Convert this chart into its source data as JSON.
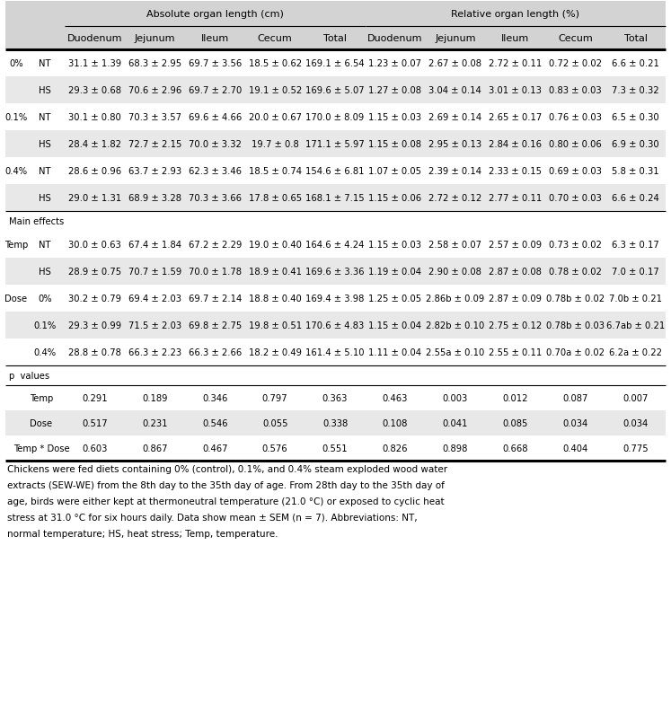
{
  "title_row1": "Absolute organ length (cm)",
  "title_row2": "Relative organ length (%)",
  "col_headers": [
    "Duodenum",
    "Jejunum",
    "Ileum",
    "Cecum",
    "Total",
    "Duodenum",
    "Jejunum",
    "Ileum",
    "Cecum",
    "Total"
  ],
  "rows": [
    {
      "label1": "0%",
      "label2": "NT",
      "cols": [
        "31.1 ± 1.39",
        "68.3 ± 2.95",
        "69.7 ± 3.56",
        "18.5 ± 0.62",
        "169.1 ± 6.54",
        "1.23 ± 0.07",
        "2.67 ± 0.08",
        "2.72 ± 0.11",
        "0.72 ± 0.02",
        "6.6 ± 0.21"
      ],
      "shaded": false
    },
    {
      "label1": "",
      "label2": "HS",
      "cols": [
        "29.3 ± 0.68",
        "70.6 ± 2.96",
        "69.7 ± 2.70",
        "19.1 ± 0.52",
        "169.6 ± 5.07",
        "1.27 ± 0.08",
        "3.04 ± 0.14",
        "3.01 ± 0.13",
        "0.83 ± 0.03",
        "7.3 ± 0.32"
      ],
      "shaded": true
    },
    {
      "label1": "0.1%",
      "label2": "NT",
      "cols": [
        "30.1 ± 0.80",
        "70.3 ± 3.57",
        "69.6 ± 4.66",
        "20.0 ± 0.67",
        "170.0 ± 8.09",
        "1.15 ± 0.03",
        "2.69 ± 0.14",
        "2.65 ± 0.17",
        "0.76 ± 0.03",
        "6.5 ± 0.30"
      ],
      "shaded": false
    },
    {
      "label1": "",
      "label2": "HS",
      "cols": [
        "28.4 ± 1.82",
        "72.7 ± 2.15",
        "70.0 ± 3.32",
        "19.7 ± 0.8",
        "171.1 ± 5.97",
        "1.15 ± 0.08",
        "2.95 ± 0.13",
        "2.84 ± 0.16",
        "0.80 ± 0.06",
        "6.9 ± 0.30"
      ],
      "shaded": true
    },
    {
      "label1": "0.4%",
      "label2": "NT",
      "cols": [
        "28.6 ± 0.96",
        "63.7 ± 2.93",
        "62.3 ± 3.46",
        "18.5 ± 0.74",
        "154.6 ± 6.81",
        "1.07 ± 0.05",
        "2.39 ± 0.14",
        "2.33 ± 0.15",
        "0.69 ± 0.03",
        "5.8 ± 0.31"
      ],
      "shaded": false
    },
    {
      "label1": "",
      "label2": "HS",
      "cols": [
        "29.0 ± 1.31",
        "68.9 ± 3.28",
        "70.3 ± 3.66",
        "17.8 ± 0.65",
        "168.1 ± 7.15",
        "1.15 ± 0.06",
        "2.72 ± 0.12",
        "2.77 ± 0.11",
        "0.70 ± 0.03",
        "6.6 ± 0.24"
      ],
      "shaded": true
    }
  ],
  "main_effects_label": "Main effects",
  "main_effects_rows": [
    {
      "label1": "Temp",
      "label2": "NT",
      "cols": [
        "30.0 ± 0.63",
        "67.4 ± 1.84",
        "67.2 ± 2.29",
        "19.0 ± 0.40",
        "164.6 ± 4.24",
        "1.15 ± 0.03",
        "2.58 ± 0.07",
        "2.57 ± 0.09",
        "0.73 ± 0.02",
        "6.3 ± 0.17"
      ],
      "shaded": false
    },
    {
      "label1": "",
      "label2": "HS",
      "cols": [
        "28.9 ± 0.75",
        "70.7 ± 1.59",
        "70.0 ± 1.78",
        "18.9 ± 0.41",
        "169.6 ± 3.36",
        "1.19 ± 0.04",
        "2.90 ± 0.08",
        "2.87 ± 0.08",
        "0.78 ± 0.02",
        "7.0 ± 0.17"
      ],
      "shaded": true
    },
    {
      "label1": "Dose",
      "label2": "0%",
      "cols": [
        "30.2 ± 0.79",
        "69.4 ± 2.03",
        "69.7 ± 2.14",
        "18.8 ± 0.40",
        "169.4 ± 3.98",
        "1.25 ± 0.05",
        "2.86b ± 0.09",
        "2.87 ± 0.09",
        "0.78b ± 0.02",
        "7.0b ± 0.21"
      ],
      "shaded": false
    },
    {
      "label1": "",
      "label2": "0.1%",
      "cols": [
        "29.3 ± 0.99",
        "71.5 ± 2.03",
        "69.8 ± 2.75",
        "19.8 ± 0.51",
        "170.6 ± 4.83",
        "1.15 ± 0.04",
        "2.82b ± 0.10",
        "2.75 ± 0.12",
        "0.78b ± 0.03",
        "6.7ab ± 0.21"
      ],
      "shaded": true
    },
    {
      "label1": "",
      "label2": "0.4%",
      "cols": [
        "28.8 ± 0.78",
        "66.3 ± 2.23",
        "66.3 ± 2.66",
        "18.2 ± 0.49",
        "161.4 ± 5.10",
        "1.11 ± 0.04",
        "2.55a ± 0.10",
        "2.55 ± 0.11",
        "0.70a ± 0.02",
        "6.2a ± 0.22"
      ],
      "shaded": false
    }
  ],
  "p_values_label": "p  values",
  "p_rows": [
    {
      "label": "Temp",
      "vals": [
        "0.291",
        "0.189",
        "0.346",
        "0.797",
        "0.363",
        "0.463",
        "0.003",
        "0.012",
        "0.087",
        "0.007"
      ],
      "shaded": false
    },
    {
      "label": "Dose",
      "vals": [
        "0.517",
        "0.231",
        "0.546",
        "0.055",
        "0.338",
        "0.108",
        "0.041",
        "0.085",
        "0.034",
        "0.034"
      ],
      "shaded": true
    },
    {
      "label": "Temp * Dose",
      "vals": [
        "0.603",
        "0.867",
        "0.467",
        "0.576",
        "0.551",
        "0.826",
        "0.898",
        "0.668",
        "0.404",
        "0.775"
      ],
      "shaded": false
    }
  ],
  "footnote": "Chickens were fed diets containing 0% (control), 0.1%, and 0.4% steam exploded wood water extracts (SEW-WE) from the 8th day to the 35th day of age. From 28th day to the 35th day of age, birds were either kept at thermoneutral temperature (21.0 °C) or exposed to cyclic heat stress at 31.0 °C for six hours daily. Data show mean ± SEM (n = 7). Abbreviations: NT, normal temperature; HS, heat stress; Temp, temperature.",
  "shaded_color": "#e8e8e8",
  "header_color": "#d3d3d3",
  "bg_color": "#ffffff",
  "border_color": "#000000"
}
